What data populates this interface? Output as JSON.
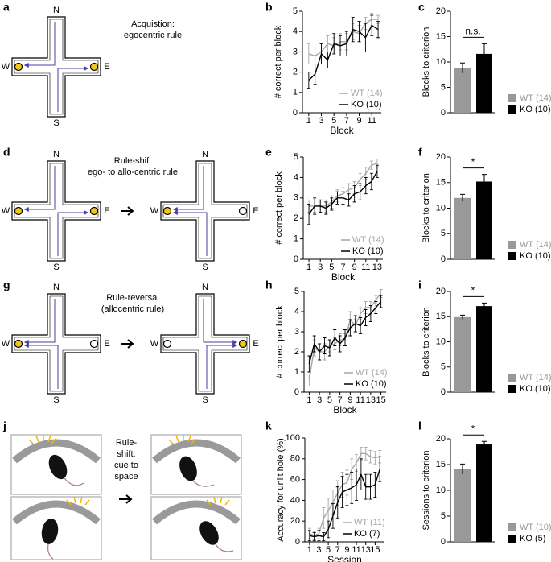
{
  "diagrams": [
    {
      "panel": "a",
      "caption": [
        "Acquistion:",
        "egocentric rule"
      ],
      "mazes": [
        {
          "compass": [
            "N",
            "S",
            "W",
            "E"
          ]
        }
      ]
    },
    {
      "panel": "d",
      "caption": [
        "Rule-shift",
        "ego- to allo-centric rule"
      ],
      "mazes": [
        {
          "compass": [
            "N",
            "S",
            "W",
            "E"
          ]
        },
        {
          "compass": [
            "N",
            "S",
            "W",
            "E"
          ]
        }
      ]
    },
    {
      "panel": "g",
      "caption": [
        "Rule-reversal",
        "(allocentric rule)"
      ],
      "mazes": [
        {
          "compass": [
            "N",
            "S",
            "W",
            "E"
          ]
        },
        {
          "compass": [
            "N",
            "S",
            "W",
            "E"
          ]
        }
      ]
    },
    {
      "panel": "j",
      "caption": [
        "Rule-",
        "shift:",
        "cue to",
        "space"
      ]
    }
  ],
  "chart_data": [
    {
      "panel": "b",
      "type": "line",
      "ylabel": "# correct per block",
      "xlabel": "Block",
      "x": [
        1,
        2,
        3,
        4,
        5,
        6,
        7,
        8,
        9,
        10,
        11,
        12
      ],
      "xlim": [
        0,
        12.5
      ],
      "xticks": [
        1,
        3,
        5,
        7,
        9,
        11
      ],
      "ylim": [
        0,
        5
      ],
      "yticks": [
        0,
        1,
        2,
        3,
        4,
        5
      ],
      "series": [
        {
          "name": "WT (14)",
          "color": "#a6a6a6",
          "values": [
            2.9,
            2.8,
            3.0,
            3.4,
            3.3,
            3.5,
            3.5,
            4.0,
            3.9,
            4.4,
            4.6,
            4.6
          ],
          "errors": [
            0.5,
            0.4,
            0.4,
            0.4,
            0.4,
            0.4,
            0.4,
            0.4,
            0.4,
            0.3,
            0.3,
            0.2
          ]
        },
        {
          "name": "KO (10)",
          "color": "#000000",
          "values": [
            1.6,
            1.9,
            2.9,
            2.6,
            3.4,
            3.3,
            3.4,
            4.1,
            4.0,
            3.7,
            4.3,
            4.1
          ],
          "errors": [
            0.4,
            0.5,
            0.5,
            0.4,
            0.5,
            0.5,
            0.6,
            0.6,
            0.5,
            0.7,
            0.5,
            0.4
          ]
        }
      ]
    },
    {
      "panel": "c",
      "type": "bar",
      "ylabel": "Blocks to criterion",
      "ylim": [
        0,
        20
      ],
      "yticks": [
        0,
        5,
        10,
        15,
        20
      ],
      "annotation": "n.s.",
      "series": [
        {
          "name": "WT (14)",
          "color": "#999999",
          "values": [
            8.8
          ],
          "errors": [
            1.0
          ]
        },
        {
          "name": "KO (10)",
          "color": "#000000",
          "values": [
            11.6
          ],
          "errors": [
            2.0
          ]
        }
      ]
    },
    {
      "panel": "e",
      "type": "line",
      "ylabel": "# correct per block",
      "xlabel": "Block",
      "x": [
        1,
        2,
        3,
        4,
        5,
        6,
        7,
        8,
        9,
        10,
        11,
        12,
        13
      ],
      "xlim": [
        0,
        14
      ],
      "xticks": [
        1,
        3,
        5,
        7,
        9,
        11,
        13
      ],
      "ylim": [
        0,
        5
      ],
      "yticks": [
        0,
        1,
        2,
        3,
        4,
        5
      ],
      "series": [
        {
          "name": "WT (14)",
          "color": "#a6a6a6",
          "values": [
            2.6,
            2.6,
            2.6,
            2.6,
            2.8,
            3.1,
            3.2,
            3.4,
            3.5,
            3.9,
            4.2,
            4.6,
            4.7
          ],
          "errors": [
            0.3,
            0.3,
            0.3,
            0.3,
            0.3,
            0.3,
            0.3,
            0.3,
            0.3,
            0.3,
            0.3,
            0.2,
            0.2
          ]
        },
        {
          "name": "KO (10)",
          "color": "#000000",
          "values": [
            2.2,
            2.6,
            2.6,
            2.5,
            2.7,
            3.0,
            3.0,
            2.9,
            3.2,
            3.3,
            3.6,
            3.8,
            4.3
          ],
          "errors": [
            0.5,
            0.4,
            0.3,
            0.3,
            0.3,
            0.3,
            0.3,
            0.3,
            0.4,
            0.4,
            0.4,
            0.4,
            0.3
          ]
        }
      ]
    },
    {
      "panel": "f",
      "type": "bar",
      "ylabel": "Blocks to criterion",
      "ylim": [
        0,
        20
      ],
      "yticks": [
        0,
        5,
        10,
        15,
        20
      ],
      "annotation": "*",
      "series": [
        {
          "name": "WT (14)",
          "color": "#999999",
          "values": [
            12.0
          ],
          "errors": [
            0.7
          ]
        },
        {
          "name": "KO (10)",
          "color": "#000000",
          "values": [
            15.2
          ],
          "errors": [
            1.4
          ]
        }
      ]
    },
    {
      "panel": "h",
      "type": "line",
      "ylabel": "# correct per block",
      "xlabel": "Block",
      "x": [
        1,
        2,
        3,
        4,
        5,
        6,
        7,
        8,
        9,
        10,
        11,
        12,
        13,
        14,
        15
      ],
      "xlim": [
        0,
        16
      ],
      "xticks": [
        1,
        3,
        5,
        7,
        9,
        11,
        13,
        15
      ],
      "ylim": [
        0,
        5
      ],
      "yticks": [
        0,
        1,
        2,
        3,
        4,
        5
      ],
      "series": [
        {
          "name": "WT (14)",
          "color": "#a6a6a6",
          "values": [
            0.6,
            2.2,
            2.0,
            2.0,
            2.3,
            2.4,
            2.6,
            2.6,
            3.6,
            3.3,
            3.9,
            4.2,
            4.2,
            4.6,
            4.9
          ],
          "errors": [
            0.3,
            0.4,
            0.4,
            0.4,
            0.3,
            0.3,
            0.3,
            0.3,
            0.4,
            0.3,
            0.3,
            0.3,
            0.3,
            0.2,
            0.2
          ]
        },
        {
          "name": "KO (10)",
          "color": "#000000",
          "values": [
            1.4,
            2.4,
            2.0,
            2.3,
            2.2,
            2.7,
            2.4,
            2.7,
            3.2,
            3.4,
            3.3,
            3.7,
            3.9,
            4.2,
            4.5
          ],
          "errors": [
            0.4,
            0.4,
            0.4,
            0.4,
            0.4,
            0.4,
            0.4,
            0.4,
            0.4,
            0.4,
            0.4,
            0.4,
            0.4,
            0.3,
            0.3
          ]
        }
      ]
    },
    {
      "panel": "i",
      "type": "bar",
      "ylabel": "Blocks to criterion",
      "ylim": [
        0,
        20
      ],
      "yticks": [
        0,
        5,
        10,
        15,
        20
      ],
      "annotation": "*",
      "series": [
        {
          "name": "WT (14)",
          "color": "#999999",
          "values": [
            14.9
          ],
          "errors": [
            0.4
          ]
        },
        {
          "name": "KO (10)",
          "color": "#000000",
          "values": [
            17.1
          ],
          "errors": [
            0.6
          ]
        }
      ]
    },
    {
      "panel": "k",
      "type": "line",
      "ylabel": "Accuracy for unlit hole (%)",
      "xlabel": "Session",
      "x": [
        1,
        2,
        3,
        4,
        5,
        6,
        7,
        8,
        9,
        10,
        11,
        12,
        13,
        14,
        15,
        16
      ],
      "xlim": [
        0,
        17
      ],
      "xticks": [
        1,
        3,
        5,
        7,
        9,
        11,
        13,
        15
      ],
      "ylim": [
        0,
        100
      ],
      "yticks": [
        0,
        20,
        40,
        60,
        80,
        100
      ],
      "series": [
        {
          "name": "WT (11)",
          "color": "#a6a6a6",
          "values": [
            8,
            6,
            8,
            23,
            30,
            38,
            47,
            55,
            57,
            70,
            76,
            85,
            85,
            82,
            81,
            82
          ],
          "errors": [
            5,
            4,
            5,
            10,
            12,
            12,
            12,
            12,
            12,
            10,
            8,
            6,
            6,
            6,
            6,
            6
          ]
        },
        {
          "name": "KO (7)",
          "color": "#000000",
          "values": [
            6,
            5,
            6,
            5,
            12,
            25,
            38,
            48,
            50,
            52,
            55,
            65,
            53,
            53,
            55,
            70
          ],
          "errors": [
            5,
            4,
            5,
            4,
            8,
            12,
            15,
            15,
            15,
            15,
            15,
            15,
            12,
            12,
            12,
            12
          ]
        }
      ]
    },
    {
      "panel": "l",
      "type": "bar",
      "ylabel": "Sessions to criterion",
      "ylim": [
        0,
        20
      ],
      "yticks": [
        0,
        5,
        10,
        15,
        20
      ],
      "annotation": "*",
      "series": [
        {
          "name": "WT (10)",
          "color": "#999999",
          "values": [
            14.1
          ],
          "errors": [
            1.0
          ]
        },
        {
          "name": "KO (5)",
          "color": "#000000",
          "values": [
            18.9
          ],
          "errors": [
            0.6
          ]
        }
      ]
    }
  ]
}
